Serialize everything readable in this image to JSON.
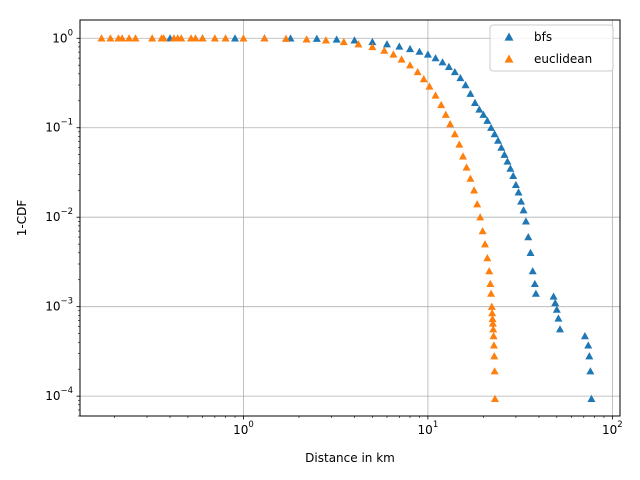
{
  "chart_data": {
    "type": "scatter",
    "marker": "triangle",
    "title": "",
    "xlabel": "Distance in km",
    "ylabel": "1-CDF",
    "xscale": "log",
    "yscale": "log",
    "xlim": [
      0.13,
      110
    ],
    "ylim": [
      6e-05,
      1.6
    ],
    "grid": true,
    "legend_position": "top-right",
    "x_ticks": [
      {
        "value": 1,
        "base": "10",
        "exp": "0"
      },
      {
        "value": 10,
        "base": "10",
        "exp": "1"
      },
      {
        "value": 100,
        "base": "10",
        "exp": "2"
      }
    ],
    "y_ticks": [
      {
        "value": 0.0001,
        "base": "10",
        "exp": "−4"
      },
      {
        "value": 0.001,
        "base": "10",
        "exp": "−3"
      },
      {
        "value": 0.01,
        "base": "10",
        "exp": "−2"
      },
      {
        "value": 0.1,
        "base": "10",
        "exp": "−1"
      },
      {
        "value": 1,
        "base": "10",
        "exp": "0"
      }
    ],
    "series": [
      {
        "name": "bfs",
        "color": "#1f77b4",
        "points": [
          [
            0.4,
            1.0
          ],
          [
            0.6,
            1.0
          ],
          [
            0.9,
            1.0
          ],
          [
            1.3,
            1.0
          ],
          [
            1.8,
            0.998
          ],
          [
            2.5,
            0.99
          ],
          [
            3.2,
            0.97
          ],
          [
            4.0,
            0.95
          ],
          [
            5.0,
            0.91
          ],
          [
            6.0,
            0.86
          ],
          [
            7.0,
            0.81
          ],
          [
            8.0,
            0.76
          ],
          [
            9.0,
            0.71
          ],
          [
            10.0,
            0.66
          ],
          [
            11.0,
            0.6
          ],
          [
            12.0,
            0.54
          ],
          [
            13.0,
            0.48
          ],
          [
            14.0,
            0.42
          ],
          [
            15.0,
            0.36
          ],
          [
            16.0,
            0.3
          ],
          [
            17.0,
            0.24
          ],
          [
            18.0,
            0.19
          ],
          [
            19.0,
            0.16
          ],
          [
            20.0,
            0.14
          ],
          [
            21.0,
            0.12
          ],
          [
            22.0,
            0.1
          ],
          [
            23.0,
            0.085
          ],
          [
            24.0,
            0.072
          ],
          [
            25.0,
            0.06
          ],
          [
            26.0,
            0.05
          ],
          [
            27.0,
            0.042
          ],
          [
            28.0,
            0.035
          ],
          [
            29.0,
            0.029
          ],
          [
            30.0,
            0.023
          ],
          [
            31.0,
            0.019
          ],
          [
            32.0,
            0.015
          ],
          [
            33.0,
            0.012
          ],
          [
            34.0,
            0.009
          ],
          [
            35.0,
            0.006
          ],
          [
            36.0,
            0.004
          ],
          [
            37.0,
            0.0025
          ],
          [
            38.0,
            0.0018
          ],
          [
            38.5,
            0.0014
          ],
          [
            48.0,
            0.0013
          ],
          [
            49.0,
            0.0011
          ],
          [
            50.0,
            0.00093
          ],
          [
            51.0,
            0.00074
          ],
          [
            52.0,
            0.00056
          ],
          [
            71.0,
            0.00047
          ],
          [
            74.0,
            0.00037
          ],
          [
            75.0,
            0.00028
          ],
          [
            76.0,
            0.00019
          ],
          [
            77.0,
            9.35e-05
          ]
        ]
      },
      {
        "name": "euclidean",
        "color": "#ff7f0e",
        "points": [
          [
            0.17,
            1.0
          ],
          [
            0.19,
            1.0
          ],
          [
            0.21,
            1.0
          ],
          [
            0.22,
            1.0
          ],
          [
            0.24,
            1.0
          ],
          [
            0.26,
            1.0
          ],
          [
            0.32,
            1.0
          ],
          [
            0.36,
            1.0
          ],
          [
            0.37,
            1.0
          ],
          [
            0.42,
            1.0
          ],
          [
            0.44,
            1.0
          ],
          [
            0.46,
            1.0
          ],
          [
            0.52,
            1.0
          ],
          [
            0.55,
            1.0
          ],
          [
            0.6,
            1.0
          ],
          [
            0.7,
            1.0
          ],
          [
            0.8,
            1.0
          ],
          [
            1.0,
            1.0
          ],
          [
            1.3,
            0.998
          ],
          [
            1.7,
            0.99
          ],
          [
            2.2,
            0.975
          ],
          [
            2.8,
            0.95
          ],
          [
            3.5,
            0.91
          ],
          [
            4.2,
            0.86
          ],
          [
            5.0,
            0.8
          ],
          [
            5.8,
            0.73
          ],
          [
            6.5,
            0.66
          ],
          [
            7.2,
            0.58
          ],
          [
            8.0,
            0.5
          ],
          [
            8.8,
            0.42
          ],
          [
            9.5,
            0.35
          ],
          [
            10.2,
            0.29
          ],
          [
            11.0,
            0.23
          ],
          [
            11.8,
            0.18
          ],
          [
            12.5,
            0.14
          ],
          [
            13.2,
            0.11
          ],
          [
            14.0,
            0.085
          ],
          [
            14.8,
            0.065
          ],
          [
            15.5,
            0.048
          ],
          [
            16.2,
            0.036
          ],
          [
            17.0,
            0.027
          ],
          [
            17.8,
            0.02
          ],
          [
            18.5,
            0.014
          ],
          [
            19.2,
            0.01
          ],
          [
            19.8,
            0.007
          ],
          [
            20.4,
            0.005
          ],
          [
            21.0,
            0.0035
          ],
          [
            21.5,
            0.0025
          ],
          [
            21.8,
            0.0018
          ],
          [
            22.0,
            0.0014
          ],
          [
            22.2,
            0.001
          ],
          [
            22.3,
            0.00085
          ],
          [
            22.4,
            0.00073
          ],
          [
            22.5,
            0.00065
          ],
          [
            22.6,
            0.00056
          ],
          [
            22.7,
            0.00047
          ],
          [
            22.8,
            0.00037
          ],
          [
            22.9,
            0.00028
          ],
          [
            23.0,
            0.00019
          ],
          [
            23.1,
            9.35e-05
          ]
        ]
      }
    ]
  }
}
